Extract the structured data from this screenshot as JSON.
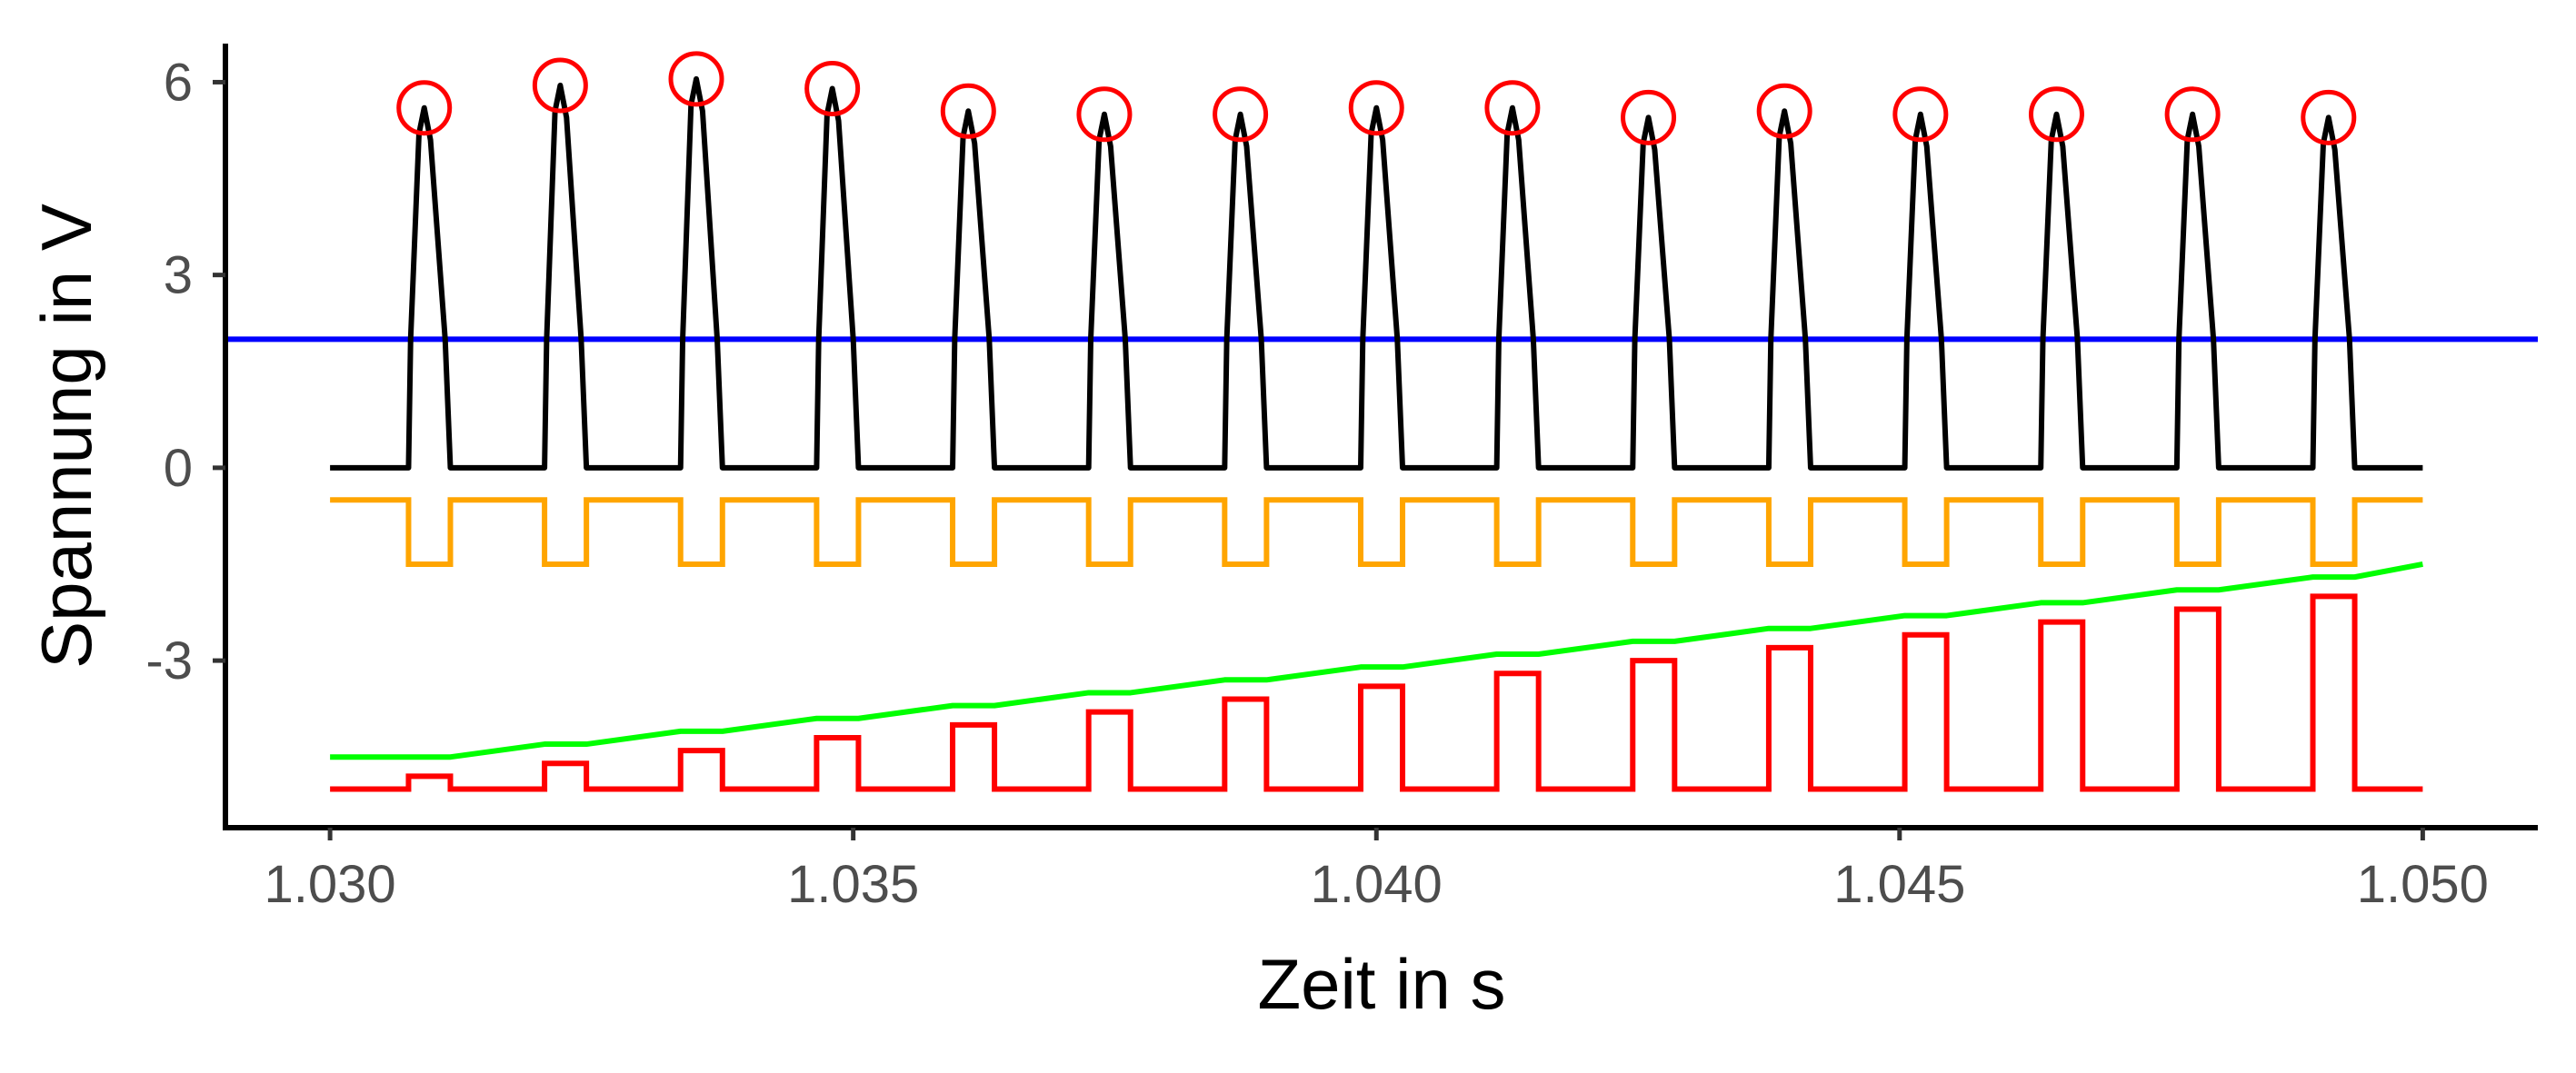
{
  "chart_data": {
    "type": "line",
    "title": "",
    "xlabel": "Zeit in s",
    "ylabel": "Spannung in V",
    "xlim": [
      1.029,
      1.0511
    ],
    "ylim": [
      -5.6,
      6.6
    ],
    "x_ticks": [
      1.03,
      1.035,
      1.04,
      1.045,
      1.05
    ],
    "x_tick_labels": [
      "1.030",
      "1.035",
      "1.040",
      "1.045",
      "1.050"
    ],
    "y_ticks": [
      6,
      3,
      0,
      -3
    ],
    "y_tick_labels": [
      "6",
      "3",
      "0",
      "-3"
    ],
    "grid": false,
    "legend": "none",
    "threshold": {
      "y": 2.0,
      "color": "#0000ff"
    },
    "pulses": {
      "x_start": 1.03,
      "x_end": 1.05,
      "rise_x": [
        1.03075,
        1.03205,
        1.03335,
        1.03465,
        1.03595,
        1.03725,
        1.03855,
        1.03985,
        1.04115,
        1.04245,
        1.04375,
        1.04505,
        1.04635,
        1.04765,
        1.04895
      ],
      "pulse_width": 0.0004
    },
    "series": [
      {
        "name": "",
        "color": "#000000",
        "kind": "pulse_signal",
        "baseline": 0,
        "threshold": 2.0,
        "peaks": [
          {
            "x": 1.0309,
            "y": 5.6
          },
          {
            "x": 1.0322,
            "y": 5.95
          },
          {
            "x": 1.0335,
            "y": 6.05
          },
          {
            "x": 1.0348,
            "y": 5.9
          },
          {
            "x": 1.0361,
            "y": 5.55
          },
          {
            "x": 1.0374,
            "y": 5.5
          },
          {
            "x": 1.0387,
            "y": 5.5
          },
          {
            "x": 1.04,
            "y": 5.6
          },
          {
            "x": 1.0413,
            "y": 5.6
          },
          {
            "x": 1.0426,
            "y": 5.45
          },
          {
            "x": 1.0439,
            "y": 5.55
          },
          {
            "x": 1.0452,
            "y": 5.5
          },
          {
            "x": 1.0465,
            "y": 5.5
          },
          {
            "x": 1.0478,
            "y": 5.5
          },
          {
            "x": 1.0491,
            "y": 5.45
          }
        ]
      },
      {
        "name": "",
        "color": "#ffa500",
        "kind": "inverted_gate",
        "high": -0.5,
        "low": -1.5
      },
      {
        "name": "",
        "color": "#00ff00",
        "kind": "staircase_ramp",
        "start": -4.5,
        "end": -1.5
      },
      {
        "name": "",
        "color": "#ff0000",
        "kind": "gated_samples",
        "baseline": -5.0,
        "pulse_tops": [
          -4.8,
          -4.6,
          -4.4,
          -4.2,
          -4.0,
          -3.8,
          -3.6,
          -3.4,
          -3.2,
          -3.0,
          -2.8,
          -2.6,
          -2.4,
          -2.2,
          -2.0
        ]
      }
    ],
    "marker_style": {
      "shape": "open-circle",
      "color": "#ff0000"
    }
  }
}
